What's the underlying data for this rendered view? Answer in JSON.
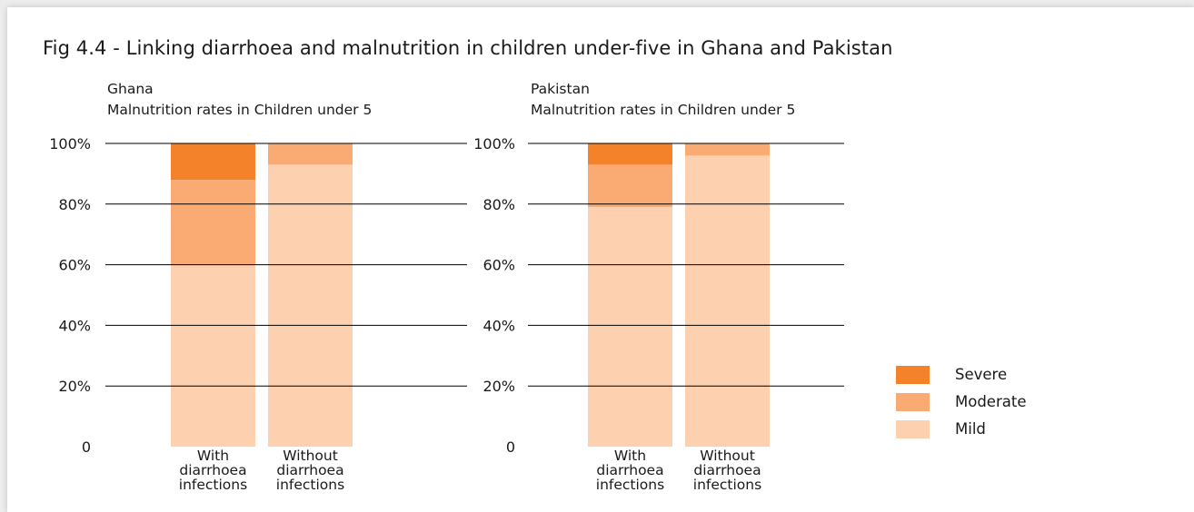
{
  "title": "Fig 4.4 - Linking diarrhoea and malnutrition in children under-five in Ghana and Pakistan",
  "colors": {
    "Severe": "#f3822a",
    "Moderate": "#f9ab73",
    "Mild": "#fdd1af",
    "grid": "#000000"
  },
  "chart_data": [
    {
      "type": "bar",
      "stacked": true,
      "title": "Ghana",
      "subtitle": "Malnutrition rates in Children under 5",
      "categories": [
        "With diarrhoea infections",
        "Without diarrhoea infections"
      ],
      "category_lines": [
        [
          "With",
          "diarrhoea",
          "infections"
        ],
        [
          "Without",
          "diarrhoea",
          "infections"
        ]
      ],
      "series": [
        {
          "name": "Mild",
          "values": [
            60,
            93
          ]
        },
        {
          "name": "Moderate",
          "values": [
            28,
            7
          ]
        },
        {
          "name": "Severe",
          "values": [
            12,
            0
          ]
        }
      ],
      "ylim": [
        0,
        100
      ],
      "yticks": [
        "0",
        "20%",
        "40%",
        "60%",
        "80%",
        "100%"
      ],
      "grid": true
    },
    {
      "type": "bar",
      "stacked": true,
      "title": "Pakistan",
      "subtitle": "Malnutrition rates in Children under 5",
      "categories": [
        "With diarrhoea infections",
        "Without diarrhoea infections"
      ],
      "category_lines": [
        [
          "With",
          "diarrhoea",
          "infections"
        ],
        [
          "Without",
          "diarrhoea",
          "infections"
        ]
      ],
      "series": [
        {
          "name": "Mild",
          "values": [
            79,
            96
          ]
        },
        {
          "name": "Moderate",
          "values": [
            14,
            4
          ]
        },
        {
          "name": "Severe",
          "values": [
            7,
            0
          ]
        }
      ],
      "ylim": [
        0,
        100
      ],
      "yticks": [
        "0",
        "20%",
        "40%",
        "60%",
        "80%",
        "100%"
      ],
      "grid": true
    }
  ],
  "legend": {
    "placement": "right",
    "items": [
      "Severe",
      "Moderate",
      "Mild"
    ]
  }
}
